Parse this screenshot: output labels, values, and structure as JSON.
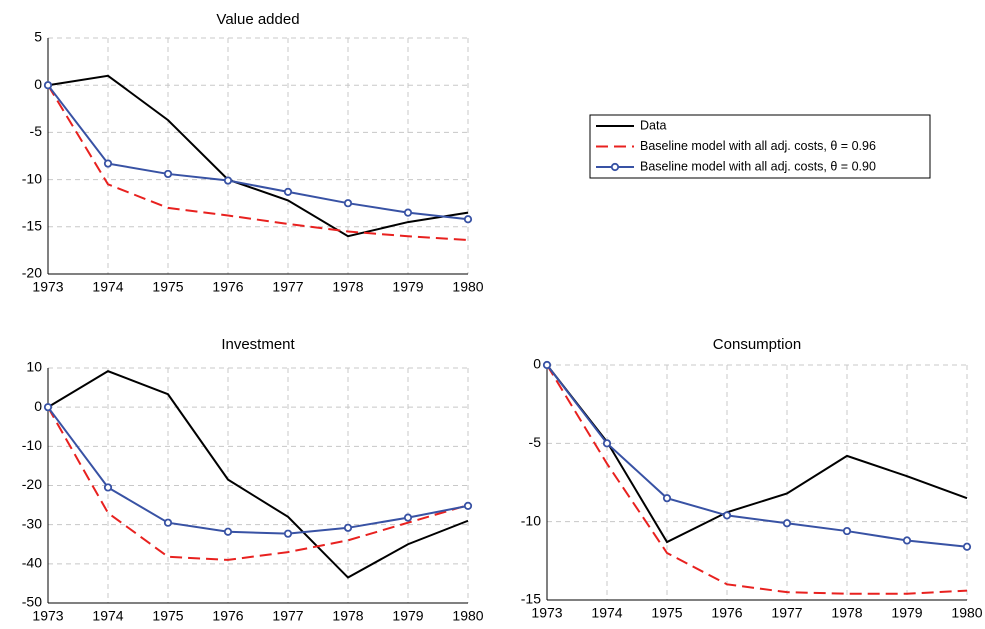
{
  "chart_data": [
    {
      "type": "line",
      "title": "Value added",
      "categories": [
        "1973",
        "1974",
        "1975",
        "1976",
        "1977",
        "1978",
        "1979",
        "1980"
      ],
      "ylim": [
        -20,
        5
      ],
      "yticks": [
        5,
        0,
        -5,
        -10,
        -15,
        -20
      ],
      "grid": true,
      "series": [
        {
          "name": "Data",
          "color": "#000000",
          "style": "solid",
          "values": [
            0,
            1.0,
            -3.7,
            -10,
            -12.2,
            -16,
            -14.5,
            -13.5
          ]
        },
        {
          "name": "Baseline model with all adj. costs, θ = 0.96",
          "color": "#e8211f",
          "style": "dashed",
          "values": [
            0,
            -10.5,
            -13,
            -13.8,
            -14.7,
            -15.5,
            -16,
            -16.4
          ]
        },
        {
          "name": "Baseline model with all adj. costs, θ = 0.90",
          "color": "#3852a4",
          "style": "solid",
          "marker": "circle",
          "values": [
            0,
            -8.3,
            -9.4,
            -10.1,
            -11.3,
            -12.5,
            -13.5,
            -14.2
          ]
        }
      ]
    },
    {
      "type": "line",
      "title": "Investment",
      "categories": [
        "1973",
        "1974",
        "1975",
        "1976",
        "1977",
        "1978",
        "1979",
        "1980"
      ],
      "ylim": [
        -50,
        10
      ],
      "yticks": [
        10,
        0,
        -10,
        -20,
        -30,
        -40,
        -50
      ],
      "grid": true,
      "series": [
        {
          "color": "#000000",
          "style": "solid",
          "values": [
            0,
            9.2,
            3.3,
            -18.5,
            -28,
            -43.5,
            -35,
            -29
          ]
        },
        {
          "color": "#e8211f",
          "style": "dashed",
          "values": [
            0,
            -27,
            -38.2,
            -39,
            -37,
            -34,
            -29.5,
            -25
          ]
        },
        {
          "color": "#3852a4",
          "style": "solid",
          "marker": "circle",
          "values": [
            0,
            -20.5,
            -29.5,
            -31.8,
            -32.3,
            -30.8,
            -28.2,
            -25.2
          ]
        }
      ]
    },
    {
      "type": "line",
      "title": "Consumption",
      "categories": [
        "1973",
        "1974",
        "1975",
        "1976",
        "1977",
        "1978",
        "1979",
        "1980"
      ],
      "ylim": [
        -15,
        0
      ],
      "yticks": [
        0,
        -5,
        -10,
        -15
      ],
      "grid": true,
      "series": [
        {
          "color": "#000000",
          "style": "solid",
          "values": [
            0,
            -4.9,
            -11.3,
            -9.4,
            -8.2,
            -5.8,
            -7.1,
            -8.5
          ]
        },
        {
          "color": "#e8211f",
          "style": "dashed",
          "values": [
            0,
            -6.3,
            -12,
            -14,
            -14.5,
            -14.6,
            -14.6,
            -14.4
          ]
        },
        {
          "color": "#3852a4",
          "style": "solid",
          "marker": "circle",
          "values": [
            0,
            -5,
            -8.5,
            -9.6,
            -10.1,
            -10.6,
            -11.2,
            -11.6
          ]
        }
      ]
    }
  ]
}
